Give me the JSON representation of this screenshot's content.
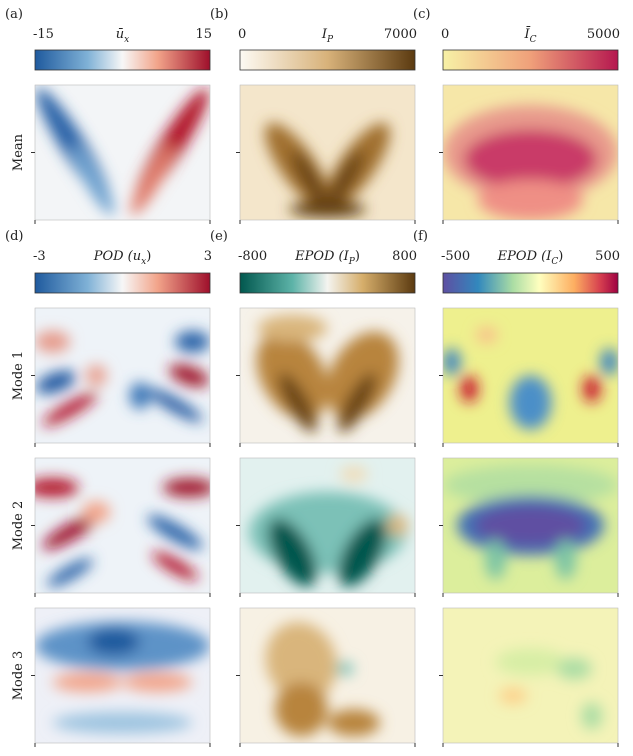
{
  "colorbars": [
    {
      "letter": "(a)",
      "min": -15,
      "max": 15,
      "label": {
        "text": "ū",
        "sub": "x",
        "after": ""
      }
    },
    {
      "letter": "(b)",
      "min": 0,
      "max": 7000,
      "label": {
        "text": "I",
        "sub": "P",
        "after": ""
      }
    },
    {
      "letter": "(c)",
      "min": 0,
      "max": 5000,
      "label": {
        "text": "Ī",
        "sub": "C",
        "after": ""
      }
    },
    {
      "letter": "(d)",
      "min": -3,
      "max": 3,
      "label": {
        "text": "POD (u",
        "sub": "x",
        "after": ")"
      }
    },
    {
      "letter": "(e)",
      "min": -800,
      "max": 800,
      "label": {
        "text": "EPOD (I",
        "sub": "P",
        "after": ")"
      }
    },
    {
      "letter": "(f)",
      "min": -500,
      "max": 500,
      "label": {
        "text": "EPOD (I",
        "sub": "C",
        "after": ")"
      }
    }
  ],
  "row_labels": [
    "Mean",
    "Mode 1",
    "Mode 2",
    "Mode 3"
  ]
}
